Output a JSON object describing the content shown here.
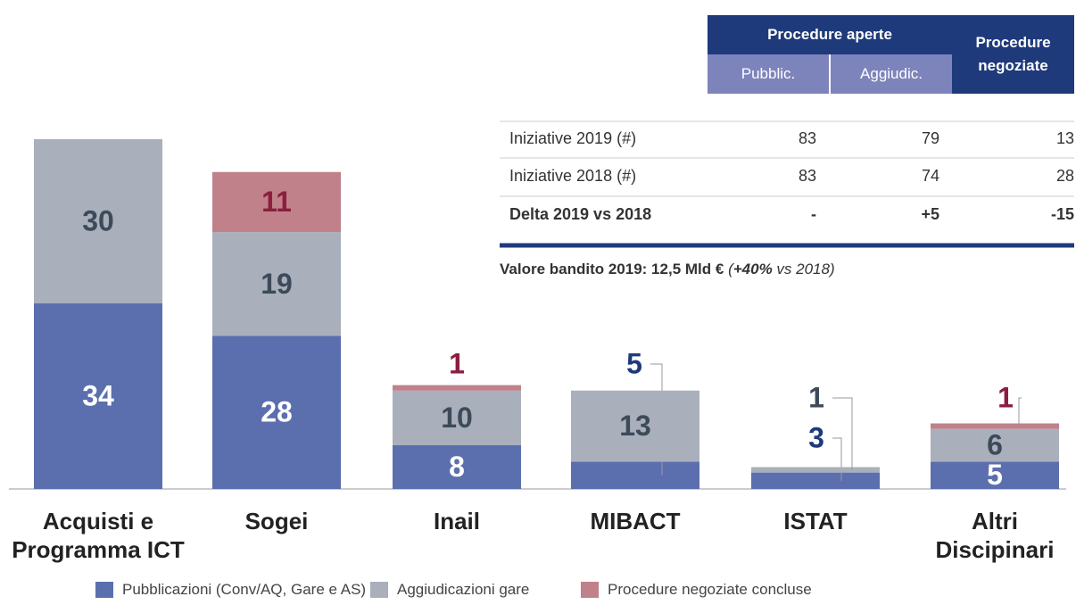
{
  "chart_data": {
    "type": "stacked_bar",
    "categories": [
      "Acquisti e\nProgramma ICT",
      "Sogei",
      "Inail",
      "MIBACT",
      "ISTAT",
      "Altri\nDiscipinari"
    ],
    "series": [
      {
        "name": "Pubblicazioni (Conv/AQ, Gare e AS)",
        "color": "#5b6fae",
        "values": [
          34,
          28,
          8,
          5,
          3,
          5
        ]
      },
      {
        "name": "Aggiudicazioni gare",
        "color": "#a9b0bb",
        "values": [
          30,
          19,
          10,
          13,
          1,
          6
        ]
      },
      {
        "name": "Procedure negoziate concluse",
        "color": "#c0818a",
        "values": [
          null,
          11,
          1,
          null,
          null,
          1
        ]
      }
    ]
  },
  "table": {
    "header": {
      "group": "Procedure aperte",
      "sub": [
        "Pubblic.",
        "Aggiudic."
      ],
      "last": "Procedure negoziate"
    },
    "rows": [
      [
        "Iniziative 2019 (#)",
        83,
        79,
        13
      ],
      [
        "Iniziative 2018 (#)",
        83,
        74,
        28
      ],
      [
        "Delta 2019 vs 2018",
        "-",
        "+5",
        "-15"
      ]
    ]
  },
  "note": {
    "label": "Valore bandito 2019: 12,5 Mld €",
    "open": "(",
    "change": "+40%",
    "rest": "vs 2018)"
  }
}
